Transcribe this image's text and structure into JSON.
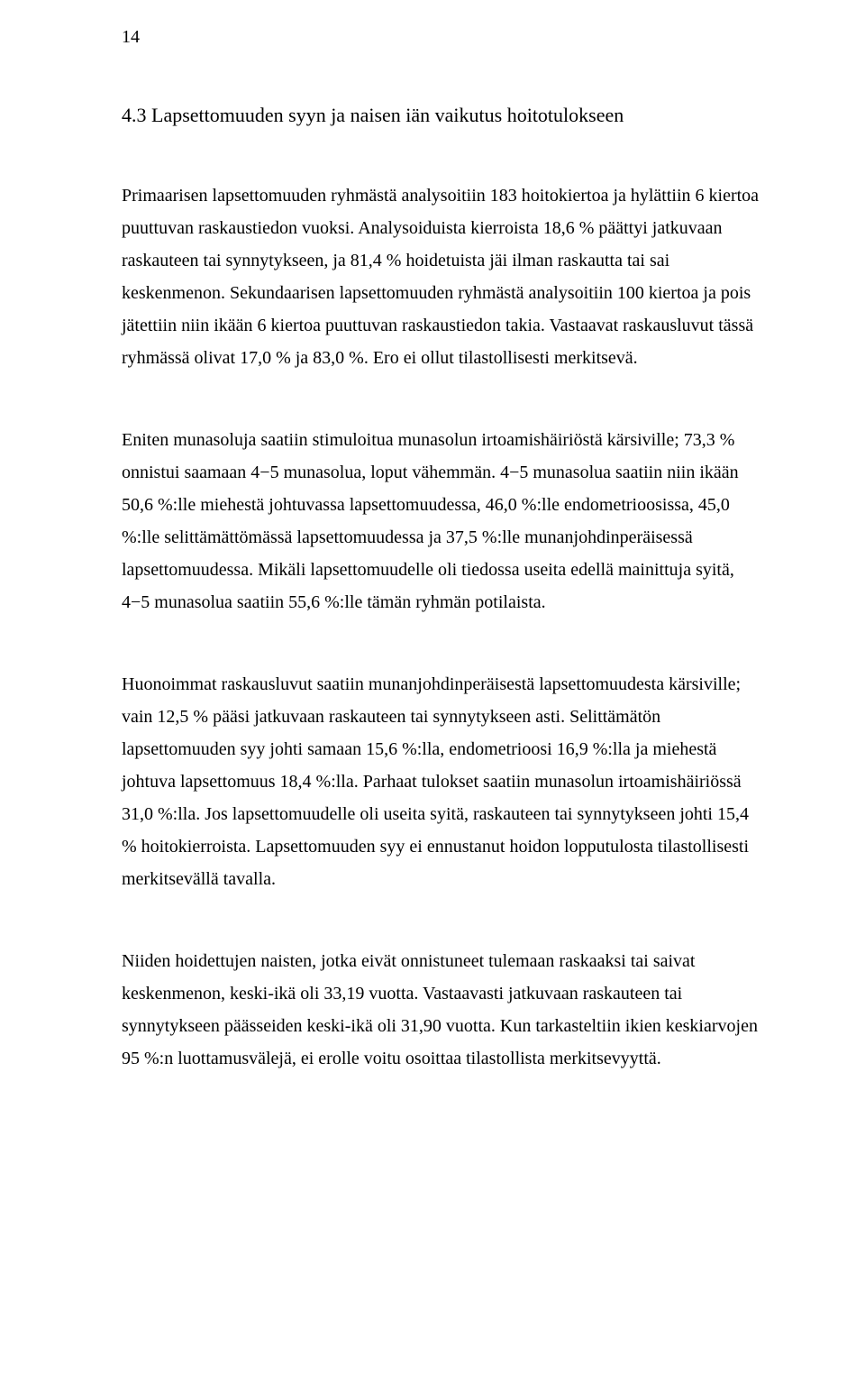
{
  "pageNumber": "14",
  "heading": "4.3 Lapsettomuuden syyn ja naisen iän vaikutus hoitotulokseen",
  "paragraphs": [
    "Primaarisen lapsettomuuden ryhmästä analysoitiin 183 hoitokiertoa ja hylättiin 6 kiertoa puuttuvan raskaustiedon vuoksi. Analysoiduista kierroista 18,6 % päättyi jatkuvaan raskauteen tai synnytykseen, ja 81,4 % hoidetuista jäi ilman raskautta tai sai keskenmenon. Sekundaarisen lapsettomuuden ryhmästä analysoitiin 100 kiertoa ja pois jätettiin niin ikään 6 kiertoa puuttuvan raskaustiedon takia. Vastaavat raskausluvut tässä ryhmässä olivat 17,0 % ja 83,0 %. Ero ei ollut tilastollisesti merkitsevä.",
    "Eniten munasoluja saatiin stimuloitua munasolun irtoamishäiriöstä kärsiville; 73,3 % onnistui saamaan 4−5 munasolua, loput vähemmän. 4−5 munasolua saatiin niin ikään 50,6 %:lle miehestä johtuvassa lapsettomuudessa, 46,0 %:lle endometrioosissa, 45,0 %:lle selittämättömässä lapsettomuudessa ja 37,5 %:lle munanjohdinperäisessä lapsettomuudessa. Mikäli lapsettomuudelle oli tiedossa useita edellä mainittuja syitä, 4−5 munasolua saatiin 55,6 %:lle tämän ryhmän potilaista.",
    "Huonoimmat raskausluvut saatiin munanjohdinperäisestä lapsettomuudesta kärsiville; vain 12,5 % pääsi jatkuvaan raskauteen tai synnytykseen asti. Selittämätön lapsettomuuden syy johti samaan 15,6 %:lla, endometrioosi 16,9 %:lla ja miehestä johtuva lapsettomuus 18,4 %:lla. Parhaat tulokset saatiin munasolun irtoamishäiriössä 31,0 %:lla. Jos lapsettomuudelle oli useita syitä, raskauteen tai synnytykseen johti 15,4 % hoitokierroista. Lapsettomuuden syy ei ennustanut hoidon lopputulosta tilastollisesti merkitsevällä tavalla.",
    "Niiden hoidettujen naisten, jotka eivät onnistuneet tulemaan raskaaksi tai saivat keskenmenon, keski-ikä oli 33,19 vuotta. Vastaavasti jatkuvaan raskauteen tai synnytykseen päässeiden keski-ikä oli 31,90 vuotta. Kun tarkasteltiin ikien keskiarvojen 95 %:n luottamusvälejä, ei erolle voitu osoittaa tilastollista merkitsevyyttä."
  ]
}
